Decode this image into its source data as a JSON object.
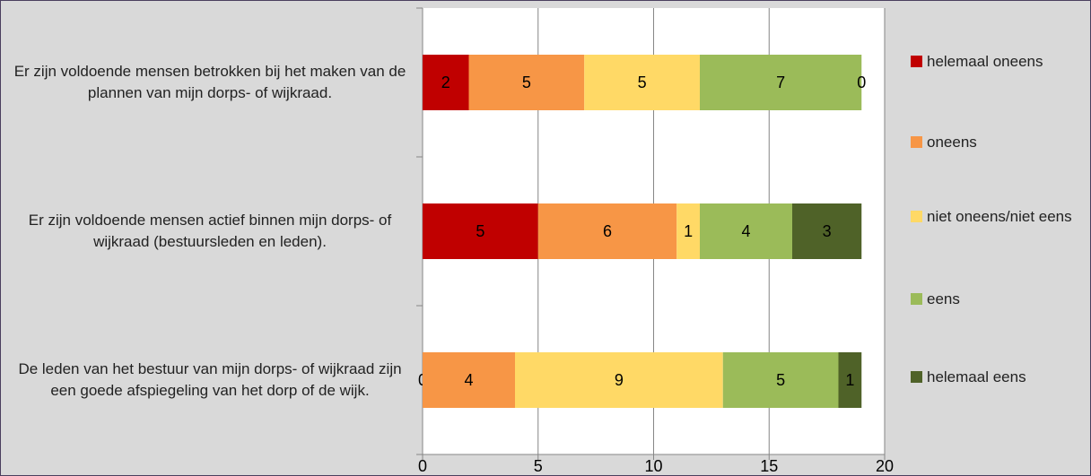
{
  "chart_data": {
    "type": "stacked-bar-horizontal",
    "categories": [
      "Er zijn voldoende mensen betrokken bij het maken van de plannen van mijn dorps- of wijkraad.",
      "Er zijn voldoende mensen actief binnen mijn dorps- of wijkraad (bestuursleden en leden).",
      "De leden van het bestuur van mijn dorps- of wijkraad zijn een goede afspiegeling van het dorp of de wijk."
    ],
    "series": [
      {
        "name": "helemaal oneens",
        "color": "#c00000",
        "values": [
          2,
          5,
          0
        ]
      },
      {
        "name": "oneens",
        "color": "#f79646",
        "values": [
          5,
          6,
          4
        ]
      },
      {
        "name": "niet oneens/niet eens",
        "color": "#ffd966",
        "values": [
          5,
          1,
          9
        ]
      },
      {
        "name": "eens",
        "color": "#9bbb59",
        "values": [
          7,
          4,
          5
        ]
      },
      {
        "name": "helemaal eens",
        "color": "#4f6228",
        "values": [
          0,
          3,
          1
        ]
      }
    ],
    "xlim": [
      0,
      20
    ],
    "xticks": [
      0,
      5,
      10,
      15,
      20
    ],
    "grid": true,
    "legend": "right"
  }
}
